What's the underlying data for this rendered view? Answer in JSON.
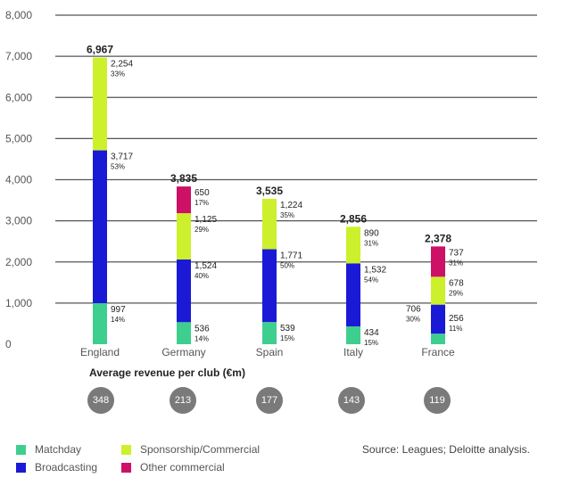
{
  "chart_data": {
    "type": "stacked-bar",
    "ylim": [
      0,
      8000
    ],
    "yticks": [
      "0",
      "1,000",
      "2,000",
      "3,000",
      "4,000",
      "5,000",
      "6,000",
      "7,000",
      "8,000"
    ],
    "categories": [
      "England",
      "Germany",
      "Spain",
      "Italy",
      "France"
    ],
    "totals": [
      "6,967",
      "3,835",
      "3,535",
      "2,856",
      "2,378"
    ],
    "series": [
      {
        "name": "Matchday",
        "color": "#3ecf8e",
        "values": [
          997,
          536,
          539,
          434,
          256
        ],
        "labels": [
          "997",
          "536",
          "539",
          "434",
          "256"
        ],
        "pcts": [
          "14%",
          "14%",
          "15%",
          "15%",
          "11%"
        ]
      },
      {
        "name": "Broadcasting",
        "color": "#1a1ad6",
        "values": [
          3717,
          1524,
          1771,
          1532,
          706
        ],
        "labels": [
          "3,717",
          "1,524",
          "1,771",
          "1,532",
          "706"
        ],
        "pcts": [
          "53%",
          "40%",
          "50%",
          "54%",
          "30%"
        ]
      },
      {
        "name": "Sponsorship/Commercial",
        "color": "#cdf02c",
        "values": [
          2254,
          1125,
          1224,
          890,
          678
        ],
        "labels": [
          "2,254",
          "1,125",
          "1,224",
          "890",
          "678"
        ],
        "pcts": [
          "33%",
          "29%",
          "35%",
          "31%",
          "29%"
        ]
      },
      {
        "name": "Other commercial",
        "color": "#cc1166",
        "values": [
          0,
          650,
          0,
          0,
          737
        ],
        "labels": [
          "",
          "650",
          "",
          "",
          "737"
        ],
        "pcts": [
          "",
          "17%",
          "",
          "",
          "31%"
        ]
      }
    ]
  },
  "subtitle": "Average revenue per club (€m)",
  "avg_revenue": [
    "348",
    "213",
    "177",
    "143",
    "119"
  ],
  "legend": {
    "matchday": "Matchday",
    "broadcasting": "Broadcasting",
    "sponsorship": "Sponsorship/Commercial",
    "other": "Other commercial"
  },
  "source": "Source: Leagues; Deloitte analysis."
}
